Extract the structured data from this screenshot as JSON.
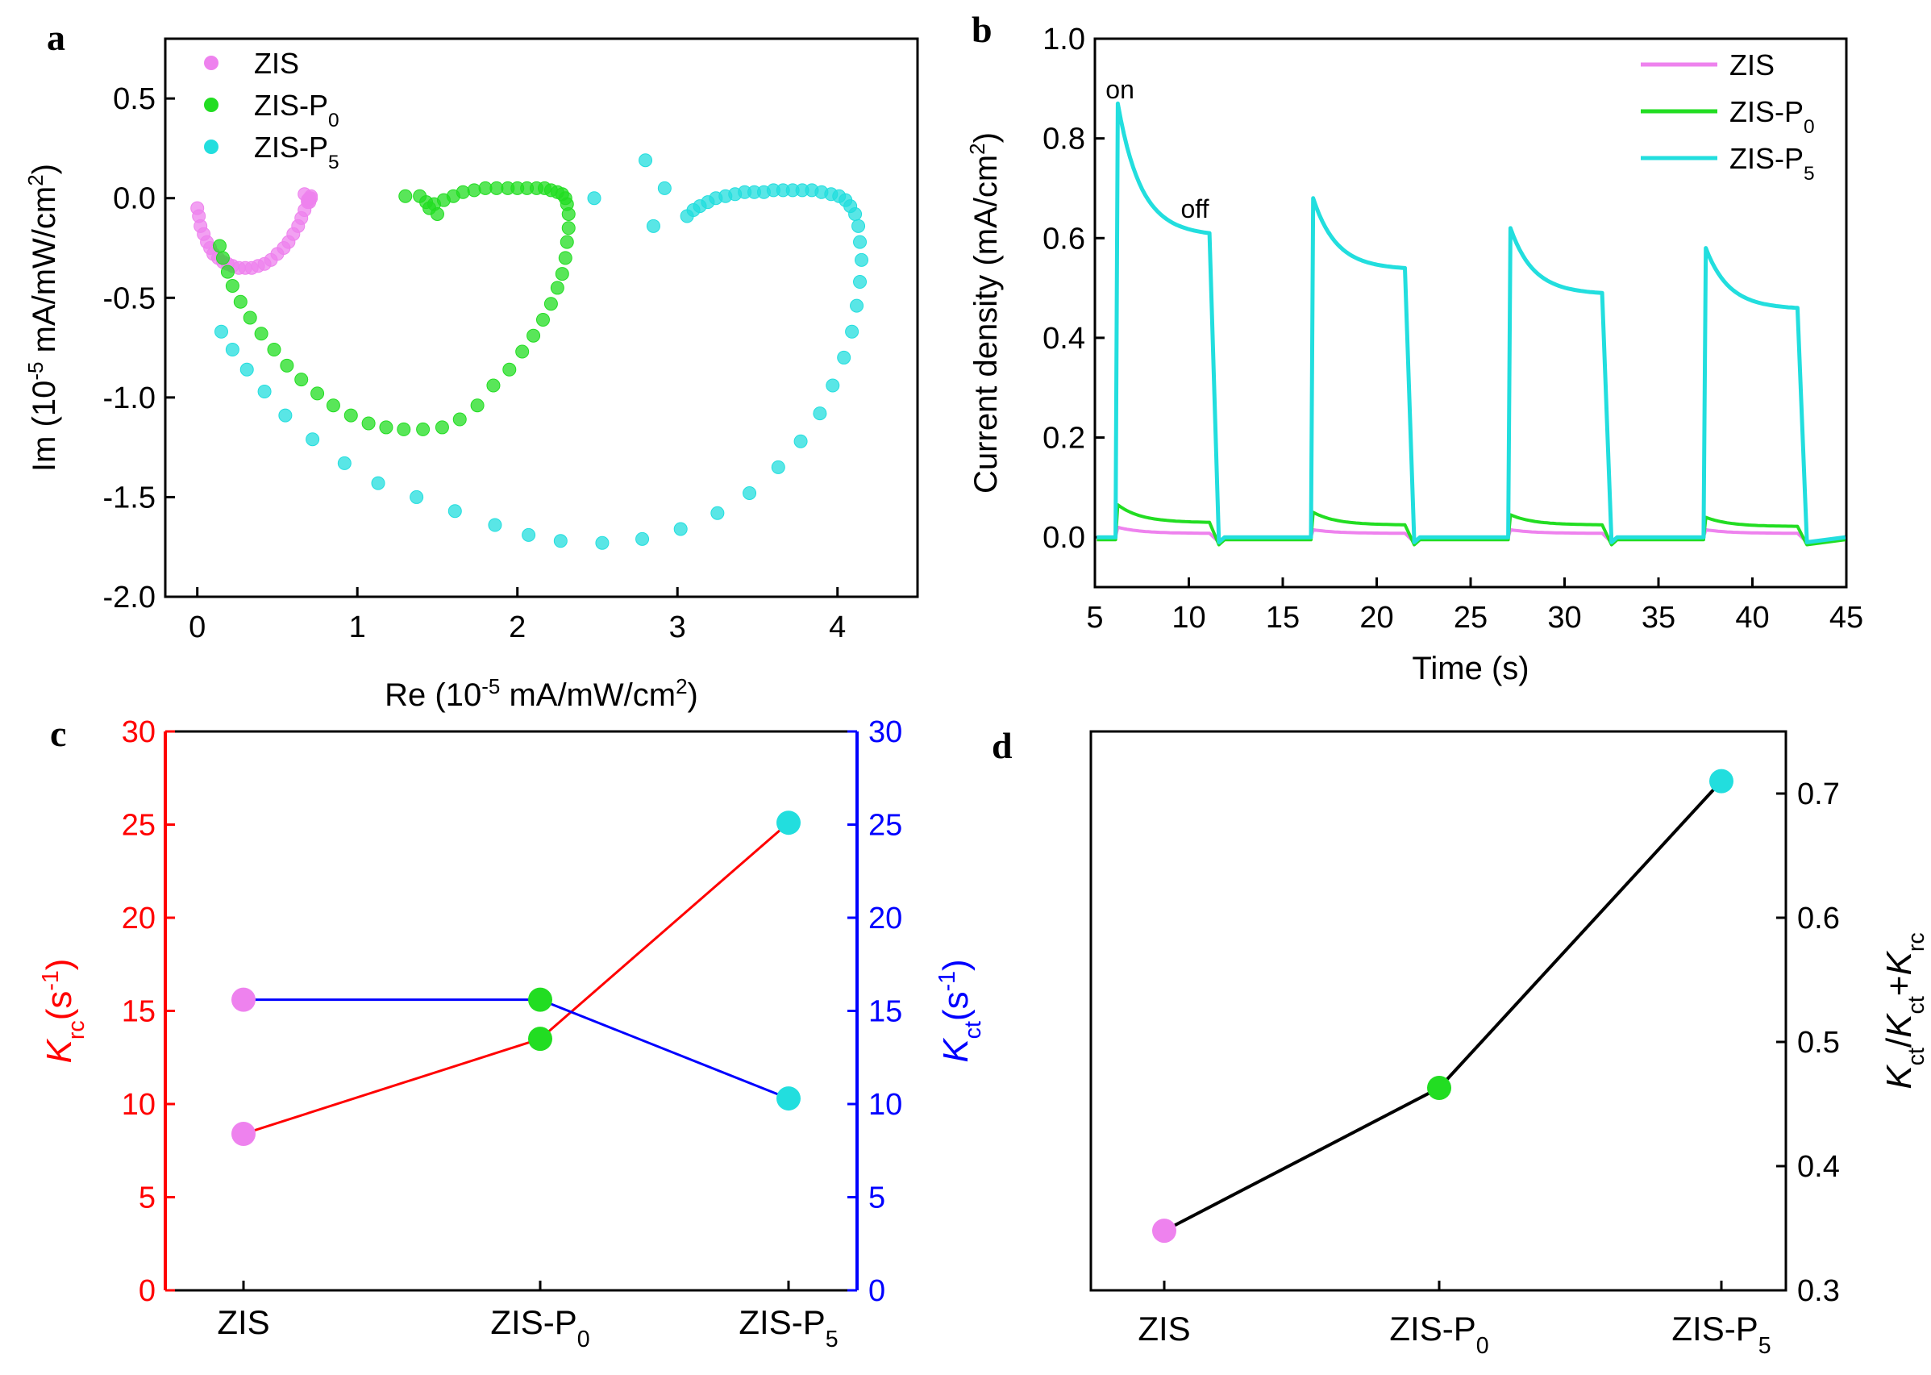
{
  "colors": {
    "zis": "#ee82ee",
    "zisp0": "#22dd22",
    "zisp5": "#22dede",
    "red": "#ff0000",
    "blue": "#0000ff"
  },
  "chart_data": [
    {
      "panel": "a",
      "type": "scatter",
      "xlabel": {
        "pre": "Re (10",
        "sup1": "-5",
        "mid": " mA/mW/cm",
        "sup2": "2",
        "post": ")"
      },
      "ylabel": {
        "pre": "Im (10",
        "sup1": "-5",
        "mid": " mA/mW/cm",
        "sup2": "2",
        "post": ")"
      },
      "xlim": [
        -0.2,
        4.5
      ],
      "ylim": [
        -2.0,
        0.8
      ],
      "xticks": [
        "0",
        "1",
        "2",
        "3",
        "4"
      ],
      "yticks": [
        "-2.0",
        "-1.5",
        "-1.0",
        "-0.5",
        "0.0",
        "0.5"
      ],
      "legend": [
        {
          "name": "ZIS",
          "label": "ZIS",
          "sub": ""
        },
        {
          "name": "ZIS-P0",
          "label": "ZIS-P",
          "sub": "0"
        },
        {
          "name": "ZIS-P5",
          "label": "ZIS-P",
          "sub": "5"
        }
      ],
      "series": [
        {
          "name": "ZIS",
          "x": [
            0.0,
            0.01,
            0.02,
            0.04,
            0.06,
            0.08,
            0.1,
            0.13,
            0.16,
            0.19,
            0.22,
            0.26,
            0.3,
            0.34,
            0.38,
            0.42,
            0.46,
            0.5,
            0.54,
            0.57,
            0.6,
            0.63,
            0.65,
            0.67,
            0.69,
            0.7,
            0.71,
            0.71,
            0.7,
            0.69,
            0.67
          ],
          "y": [
            -0.05,
            -0.09,
            -0.14,
            -0.18,
            -0.22,
            -0.25,
            -0.28,
            -0.3,
            -0.32,
            -0.33,
            -0.34,
            -0.35,
            -0.35,
            -0.35,
            -0.34,
            -0.33,
            -0.31,
            -0.28,
            -0.25,
            -0.22,
            -0.18,
            -0.14,
            -0.1,
            -0.06,
            -0.02,
            0.0,
            0.01,
            0.0,
            -0.02,
            -0.01,
            0.02
          ]
        },
        {
          "name": "ZIS-P0",
          "x": [
            0.14,
            0.16,
            0.19,
            0.22,
            0.27,
            0.33,
            0.4,
            0.48,
            0.56,
            0.65,
            0.75,
            0.85,
            0.96,
            1.07,
            1.18,
            1.29,
            1.41,
            1.53,
            1.64,
            1.75,
            1.85,
            1.95,
            2.03,
            2.1,
            2.16,
            2.21,
            2.25,
            2.28,
            2.3,
            2.31,
            2.32,
            2.32,
            2.31,
            2.3,
            2.28,
            2.25,
            2.21,
            2.17,
            2.12,
            2.06,
            2.0,
            1.94,
            1.87,
            1.8,
            1.73,
            1.66,
            1.6,
            1.54,
            1.48,
            1.43,
            1.39,
            1.3,
            1.45,
            1.5
          ],
          "y": [
            -0.24,
            -0.3,
            -0.37,
            -0.44,
            -0.52,
            -0.6,
            -0.68,
            -0.76,
            -0.84,
            -0.91,
            -0.98,
            -1.04,
            -1.09,
            -1.13,
            -1.15,
            -1.16,
            -1.16,
            -1.15,
            -1.11,
            -1.04,
            -0.94,
            -0.86,
            -0.77,
            -0.69,
            -0.61,
            -0.53,
            -0.45,
            -0.38,
            -0.3,
            -0.22,
            -0.15,
            -0.08,
            -0.03,
            0.0,
            0.02,
            0.03,
            0.04,
            0.05,
            0.05,
            0.05,
            0.05,
            0.05,
            0.05,
            0.05,
            0.04,
            0.03,
            0.01,
            -0.01,
            -0.03,
            -0.02,
            0.01,
            0.01,
            -0.05,
            -0.08
          ]
        },
        {
          "name": "ZIS-P5",
          "x": [
            0.15,
            0.22,
            0.31,
            0.42,
            0.55,
            0.72,
            0.92,
            1.13,
            1.37,
            1.61,
            1.86,
            2.07,
            2.27,
            2.53,
            2.78,
            3.02,
            3.25,
            3.45,
            3.63,
            3.77,
            3.89,
            3.97,
            4.04,
            4.09,
            4.12,
            4.14,
            4.15,
            4.14,
            4.13,
            4.11,
            4.08,
            4.05,
            4.01,
            3.96,
            3.9,
            3.84,
            3.78,
            3.72,
            3.66,
            3.6,
            3.54,
            3.48,
            3.42,
            3.36,
            3.3,
            3.24,
            3.19,
            3.14,
            3.1,
            3.06,
            2.92,
            2.8,
            2.85,
            2.48
          ],
          "y": [
            -0.67,
            -0.76,
            -0.86,
            -0.97,
            -1.09,
            -1.21,
            -1.33,
            -1.43,
            -1.5,
            -1.57,
            -1.64,
            -1.69,
            -1.72,
            -1.73,
            -1.71,
            -1.66,
            -1.58,
            -1.48,
            -1.35,
            -1.22,
            -1.08,
            -0.94,
            -0.8,
            -0.67,
            -0.54,
            -0.42,
            -0.31,
            -0.22,
            -0.14,
            -0.08,
            -0.04,
            -0.01,
            0.01,
            0.02,
            0.03,
            0.04,
            0.04,
            0.04,
            0.04,
            0.04,
            0.03,
            0.03,
            0.03,
            0.02,
            0.01,
            0.0,
            -0.02,
            -0.04,
            -0.06,
            -0.09,
            0.05,
            0.19,
            -0.14,
            0.0
          ]
        }
      ]
    },
    {
      "panel": "b",
      "type": "line",
      "xlabel": "Time (s)",
      "ylabel": {
        "pre": "Current density (mA/cm",
        "sup": "2",
        "post": ")"
      },
      "xlim": [
        5,
        45
      ],
      "ylim": [
        -0.1,
        1.0
      ],
      "xticks": [
        "5",
        "10",
        "15",
        "20",
        "25",
        "30",
        "35",
        "40",
        "45"
      ],
      "yticks": [
        "0.0",
        "0.2",
        "0.4",
        "0.6",
        "0.8",
        "1.0"
      ],
      "annotations": [
        {
          "text": "on",
          "x": 6.0,
          "y": 0.9
        },
        {
          "text": "off",
          "x": 10.0,
          "y": 0.66
        }
      ],
      "light_on": [
        6.1,
        16.5,
        27.0,
        37.4
      ],
      "light_off": [
        11.1,
        21.5,
        32.0,
        42.4
      ],
      "legend": [
        {
          "name": "ZIS",
          "label": "ZIS",
          "sub": ""
        },
        {
          "name": "ZIS-P0",
          "label": "ZIS-P",
          "sub": "0"
        },
        {
          "name": "ZIS-P5",
          "label": "ZIS-P",
          "sub": "5"
        }
      ],
      "series": [
        {
          "name": "ZIS",
          "peak": [
            0.02,
            0.015,
            0.015,
            0.015
          ],
          "end": [
            0.008,
            0.008,
            0.008,
            0.008
          ],
          "dark": 0.0
        },
        {
          "name": "ZIS-P0",
          "peak": [
            0.065,
            0.05,
            0.045,
            0.04
          ],
          "end": [
            0.03,
            0.025,
            0.025,
            0.022
          ],
          "dark": -0.005
        },
        {
          "name": "ZIS-P5",
          "peak": [
            0.87,
            0.68,
            0.62,
            0.58
          ],
          "end": [
            0.61,
            0.54,
            0.49,
            0.46
          ],
          "dark": 0.0
        }
      ]
    },
    {
      "panel": "c",
      "type": "line",
      "categories": [
        {
          "label": "ZIS",
          "sub": ""
        },
        {
          "label": "ZIS-P",
          "sub": "0"
        },
        {
          "label": "ZIS-P",
          "sub": "5"
        }
      ],
      "ylim_left": [
        0,
        30
      ],
      "ylim_right": [
        0,
        30
      ],
      "yticks": [
        "0",
        "5",
        "10",
        "15",
        "20",
        "25",
        "30"
      ],
      "ylabel_left": {
        "main": "K",
        "sub": "rc",
        "unit": "(s",
        "sup": "-1",
        "close": ")"
      },
      "ylabel_right": {
        "main": "K",
        "sub": "ct",
        "unit": "(s",
        "sup": "-1",
        "close": ")"
      },
      "series": [
        {
          "name": "Krc",
          "axis": "left",
          "values": [
            8.4,
            13.5,
            25.1
          ]
        },
        {
          "name": "Kct",
          "axis": "right",
          "values": [
            15.6,
            15.6,
            10.3
          ]
        }
      ]
    },
    {
      "panel": "d",
      "type": "line",
      "categories": [
        {
          "label": "ZIS",
          "sub": ""
        },
        {
          "label": "ZIS-P",
          "sub": "0"
        },
        {
          "label": "ZIS-P",
          "sub": "5"
        }
      ],
      "ylim": [
        0.3,
        0.75
      ],
      "yticks": [
        "0.3",
        "0.4",
        "0.5",
        "0.6",
        "0.7"
      ],
      "ylabel": {
        "k1": "K",
        "s1": "ct",
        "slash": "/",
        "k2": "K",
        "s2": "ct",
        "plus": "+",
        "k3": "K",
        "s3": "rc"
      },
      "series": [
        {
          "name": "ratio",
          "values": [
            0.348,
            0.463,
            0.71
          ]
        }
      ]
    }
  ],
  "panels": {
    "a": "a",
    "b": "b",
    "c": "c",
    "d": "d"
  }
}
